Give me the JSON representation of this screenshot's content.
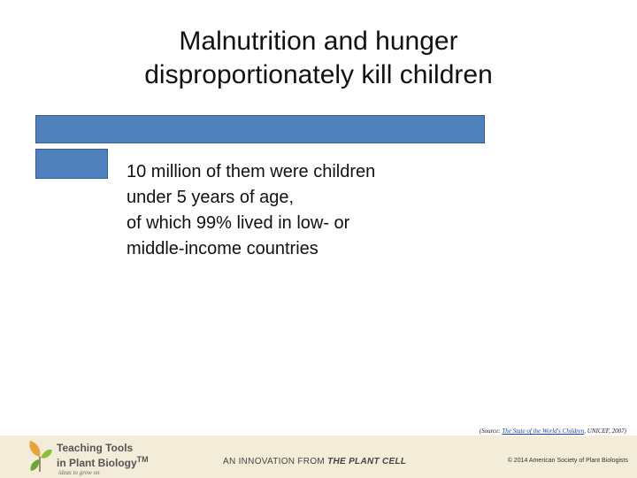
{
  "slide": {
    "title_line1": "Malnutrition and hunger",
    "title_line2": "disproportionately kill children",
    "body_lines": [
      "10 million of them were children",
      "under 5 years of age,",
      "of which 99% lived in low- or",
      "middle-income countries"
    ],
    "source_prefix": "(Source: ",
    "source_link": "The State of the World's Children",
    "source_suffix": ", UNICEF, 2007)",
    "bar_color": "#4f81bd"
  },
  "footer": {
    "brand_line1": "Teaching Tools",
    "brand_line2": "in Plant Biology",
    "brand_mark": "TM",
    "tagline": "ideas to grow on",
    "innovation_prefix": "AN INNOVATION FROM ",
    "innovation_brand": "THE PLANT CELL",
    "copyright": "© 2014 American Society of Plant Biologists"
  }
}
